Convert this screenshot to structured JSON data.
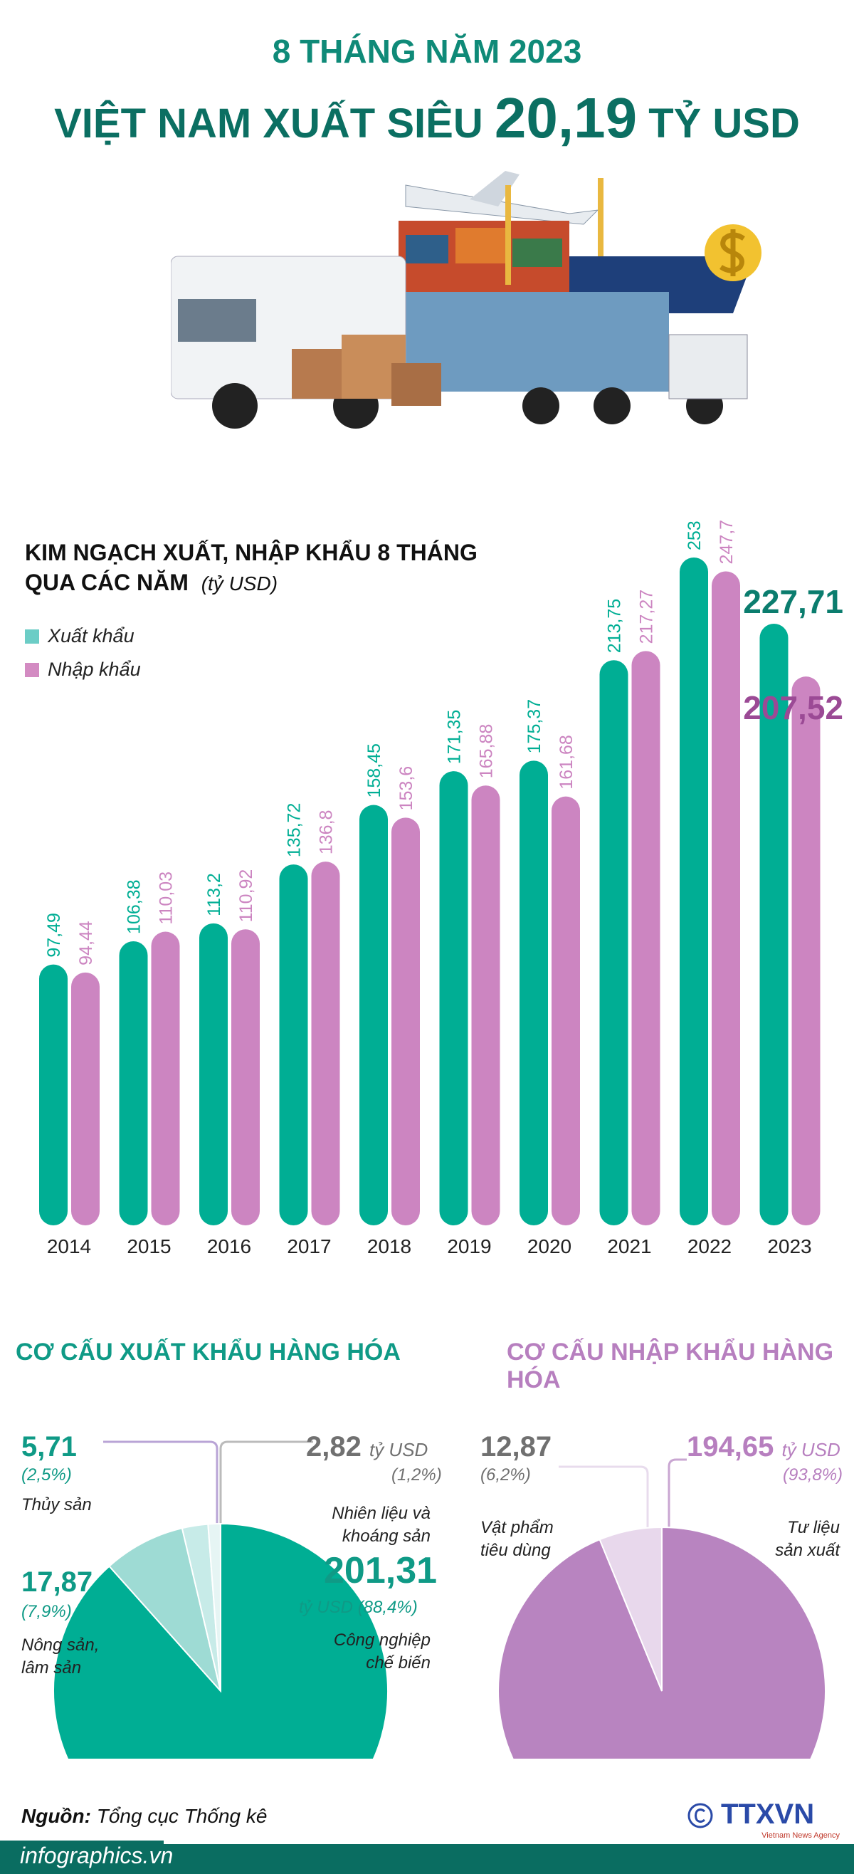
{
  "header": {
    "subtitle": "8 THÁNG NĂM 2023",
    "title_prefix": "VIỆT NAM XUẤT SIÊU",
    "title_value": "20,19",
    "title_suffix": "TỶ USD"
  },
  "colors": {
    "export": "#00ae94",
    "import": "#cc85c1",
    "title": "#0b6f62",
    "import_pie": "#b884c0",
    "footer": "#0a6d61"
  },
  "chart_data": {
    "type": "bar",
    "title": "KIM NGẠCH XUẤT, NHẬP KHẨU 8 THÁNG QUA CÁC NĂM",
    "title_line1": "KIM NGẠCH XUẤT, NHẬP KHẨU 8 THÁNG",
    "title_line2": "QUA CÁC NĂM",
    "unit": "(tỷ USD)",
    "categories": [
      "2014",
      "2015",
      "2016",
      "2017",
      "2018",
      "2019",
      "2020",
      "2021",
      "2022",
      "2023"
    ],
    "series": [
      {
        "name": "Xuất khẩu",
        "values": [
          97.49,
          106.38,
          113.2,
          135.72,
          158.45,
          171.35,
          175.37,
          213.75,
          253,
          227.71
        ],
        "labels": [
          "97,49",
          "106,38",
          "113,2",
          "135,72",
          "158,45",
          "171,35",
          "175,37",
          "213,75",
          "253",
          "227,71"
        ]
      },
      {
        "name": "Nhập khẩu",
        "values": [
          94.44,
          110.03,
          110.92,
          136.8,
          153.6,
          165.88,
          161.68,
          217.27,
          247.7,
          207.52
        ],
        "labels": [
          "94,44",
          "110,03",
          "110,92",
          "136,8",
          "153,6",
          "165,88",
          "161,68",
          "217,27",
          "247,7",
          "207,52"
        ]
      }
    ],
    "ylim": [
      0,
      253
    ],
    "grid": false,
    "legend": "top-left"
  },
  "export_structure": {
    "title": "CƠ CẤU XUẤT KHẨU HÀNG HÓA",
    "items": [
      {
        "name": "Công nghiệp chế biến",
        "name1": "Công nghiệp",
        "name2": "chế biến",
        "value": "201,31",
        "unit": "tỷ USD",
        "pct": "(88,4%)",
        "share": 88.4
      },
      {
        "name": "Nông sản, lâm sản",
        "name1": "Nông sản,",
        "name2": "lâm sản",
        "value": "17,87",
        "pct": "(7,9%)",
        "share": 7.9
      },
      {
        "name": "Thủy sản",
        "value": "5,71",
        "pct": "(2,5%)",
        "share": 2.5
      },
      {
        "name": "Nhiên liệu và khoáng sản",
        "name1": "Nhiên liệu và",
        "name2": "khoáng sản",
        "value": "2,82",
        "unit": "tỷ USD",
        "pct": "(1,2%)",
        "share": 1.2
      }
    ]
  },
  "import_structure": {
    "title": "CƠ CẤU NHẬP KHẨU HÀNG HÓA",
    "items": [
      {
        "name1": "Tư liệu",
        "name2": "sản xuất",
        "value": "194,65",
        "unit": "tỷ USD",
        "pct": "(93,8%)",
        "share": 93.8
      },
      {
        "name1": "Vật phẩm",
        "name2": "tiêu dùng",
        "value": "12,87",
        "pct": "(6,2%)",
        "share": 6.2
      }
    ]
  },
  "footer": {
    "source_label": "Nguồn:",
    "source": "Tổng cục Thống kê",
    "site": "infographics.vn",
    "logo": "TTXVN",
    "logo_sub": "Vietnam News Agency"
  }
}
